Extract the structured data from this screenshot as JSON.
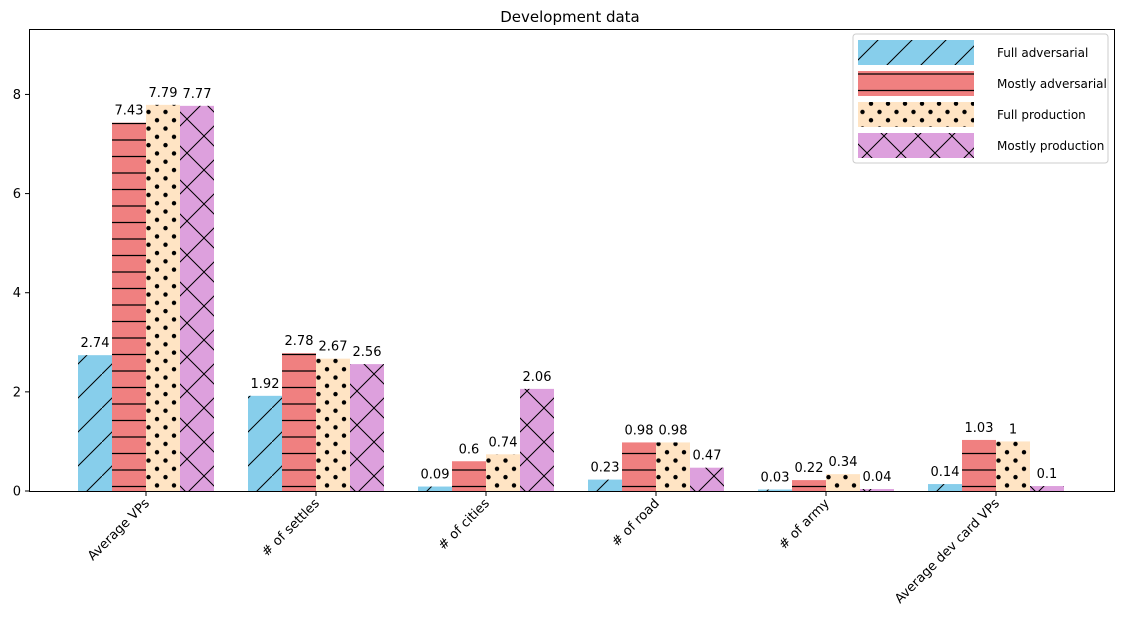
{
  "chart_data": {
    "type": "bar",
    "title": "Development data",
    "xlabel": "",
    "ylabel": "",
    "ylim": [
      0,
      9.3
    ],
    "yticks": [
      0,
      2,
      4,
      6,
      8
    ],
    "grid": false,
    "legend_position": "top-right",
    "categories": [
      "Average VPs",
      "# of settles",
      "# of cities",
      "# of road",
      "# of army",
      "Average dev card VPs"
    ],
    "series": [
      {
        "name": "Full adversarial",
        "color": "#87ceeb",
        "hatch": "diagonal",
        "values": [
          2.74,
          1.92,
          0.09,
          0.23,
          0.03,
          0.14
        ],
        "labels": [
          "2.74",
          "1.92",
          "0.09",
          "0.23",
          "0.03",
          "0.14"
        ]
      },
      {
        "name": "Mostly adversarial",
        "color": "#f08080",
        "hatch": "horizontal",
        "values": [
          7.43,
          2.78,
          0.6,
          0.98,
          0.22,
          1.03
        ],
        "labels": [
          "7.43",
          "2.78",
          "0.6",
          "0.98",
          "0.22",
          "1.03"
        ]
      },
      {
        "name": "Full production",
        "color": "#ffe4c4",
        "hatch": "dots",
        "values": [
          7.79,
          2.67,
          0.74,
          0.98,
          0.34,
          1
        ],
        "labels": [
          "7.79",
          "2.67",
          "0.74",
          "0.98",
          "0.34",
          "1"
        ]
      },
      {
        "name": "Mostly production",
        "color": "#dda0dd",
        "hatch": "crosshatch",
        "values": [
          7.77,
          2.56,
          2.06,
          0.47,
          0.04,
          0.1
        ],
        "labels": [
          "7.77",
          "2.56",
          "2.06",
          "0.47",
          "0.04",
          "0.1"
        ]
      }
    ]
  }
}
